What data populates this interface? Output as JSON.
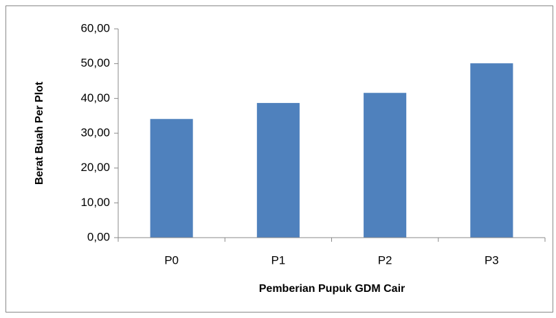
{
  "chart_data": {
    "type": "bar",
    "categories": [
      "P0",
      "P1",
      "P2",
      "P3"
    ],
    "values": [
      34.1,
      38.7,
      41.6,
      50.1
    ],
    "color": "#4f81bd",
    "xlabel": "Pemberian Pupuk GDM Cair",
    "ylabel": "Berat Buah Per Plot",
    "ylim": [
      0,
      60
    ],
    "yticks": [
      {
        "value": 0,
        "label": "0,00"
      },
      {
        "value": 10,
        "label": "10,00"
      },
      {
        "value": 20,
        "label": "20,00"
      },
      {
        "value": 30,
        "label": "30,00"
      },
      {
        "value": 40,
        "label": "40,00"
      },
      {
        "value": 50,
        "label": "50,00"
      },
      {
        "value": 60,
        "label": "60,00"
      }
    ],
    "grid": false
  }
}
